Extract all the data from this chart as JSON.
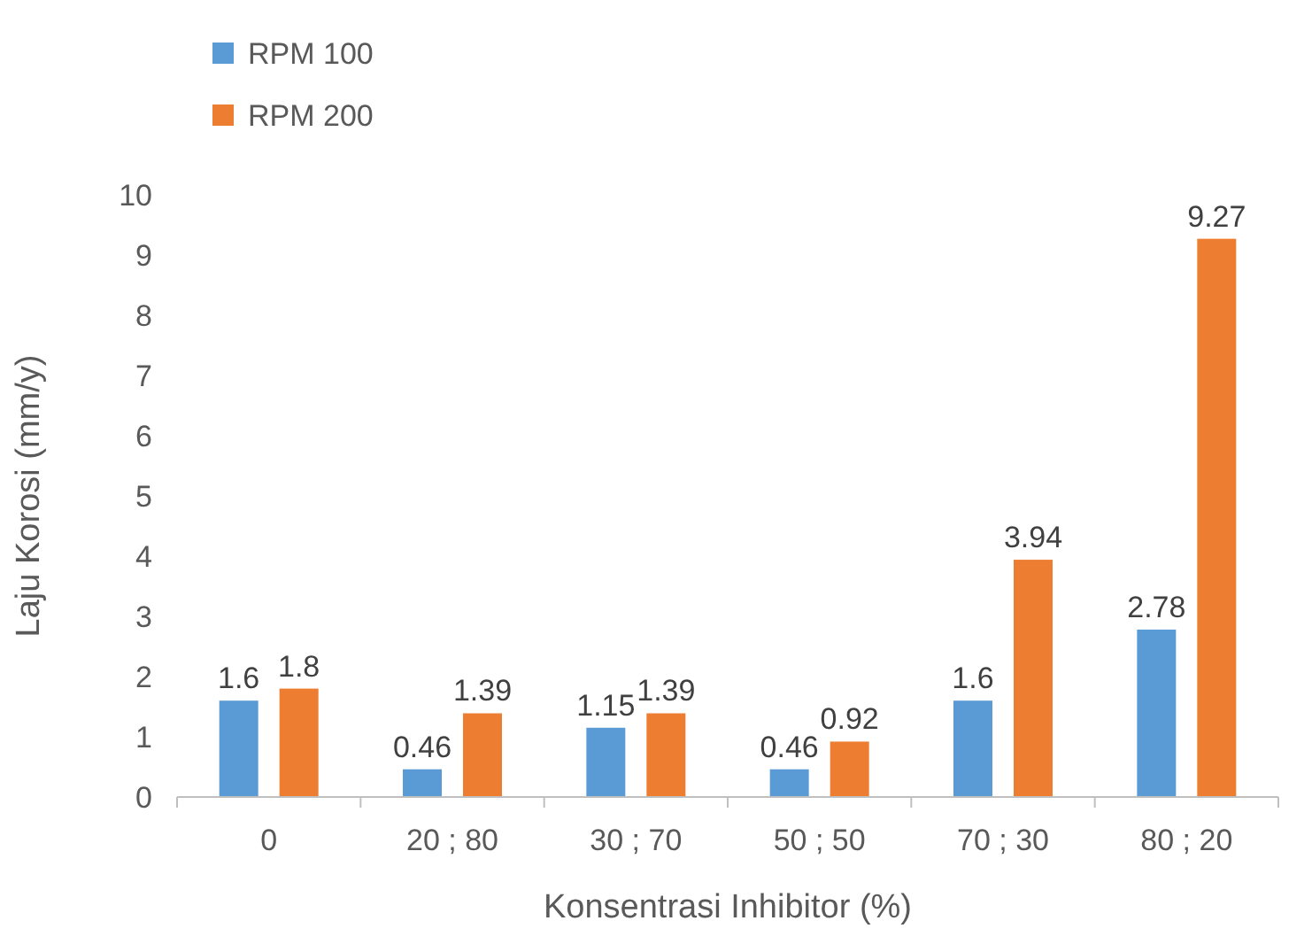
{
  "chart_data": {
    "type": "bar",
    "xlabel": "Konsentrasi Inhibitor (%)",
    "ylabel": "Laju Korosi (mm/y)",
    "categories": [
      "0",
      "20 ; 80",
      "30 ; 70",
      "50 ; 50",
      "70 ; 30",
      "80 ; 20"
    ],
    "series": [
      {
        "name": "RPM 100",
        "color": "#5b9bd5",
        "values": [
          1.6,
          0.46,
          1.15,
          0.46,
          1.6,
          2.78
        ]
      },
      {
        "name": "RPM 200",
        "color": "#ed7d31",
        "values": [
          1.8,
          1.39,
          1.39,
          0.92,
          3.94,
          9.27
        ]
      }
    ],
    "ylim": [
      0,
      10
    ],
    "yticks": [
      0,
      1,
      2,
      3,
      4,
      5,
      6,
      7,
      8,
      9,
      10
    ],
    "grid": false,
    "legend": "top left",
    "data_labels": true
  }
}
